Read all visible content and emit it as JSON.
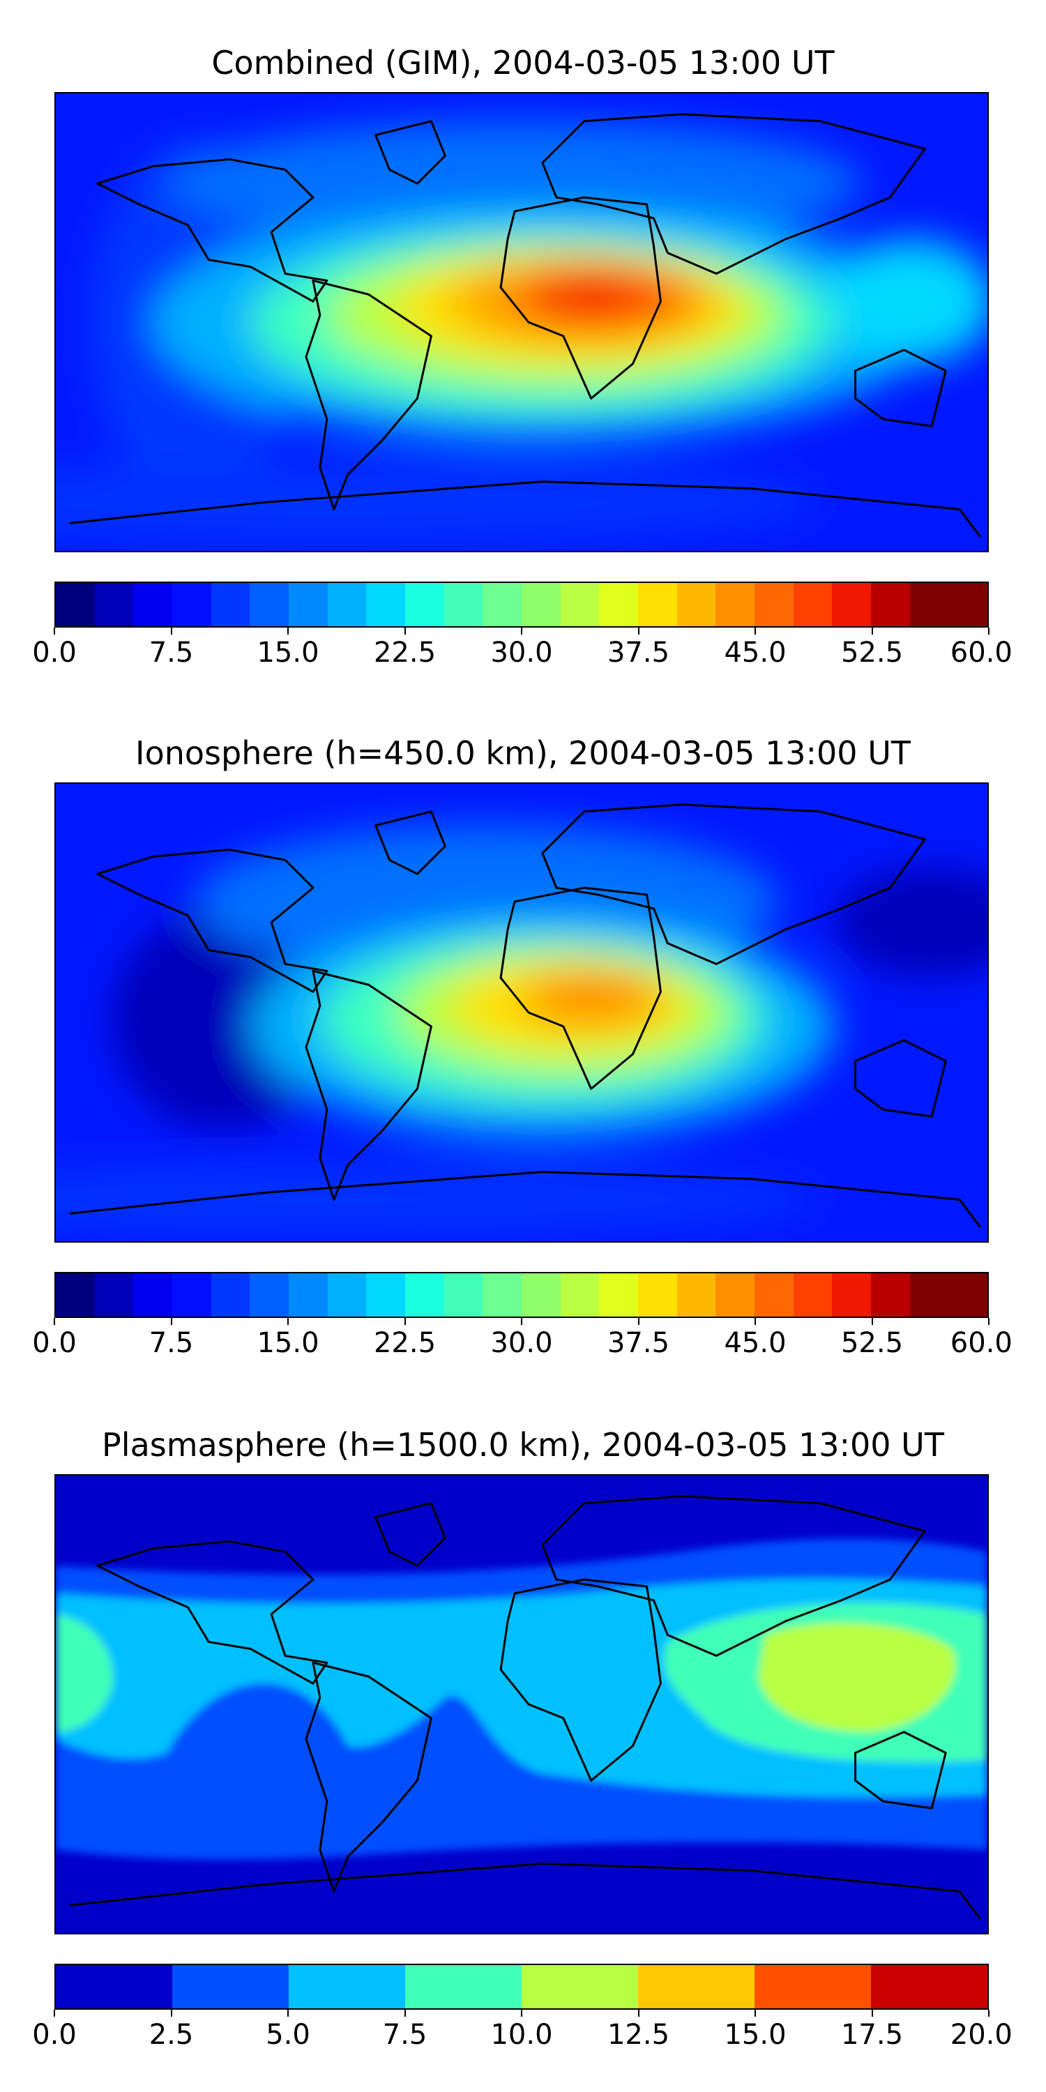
{
  "panels": [
    {
      "id": "combined",
      "title": "Combined (GIM), 2004-03-05 13:00 UT",
      "colorbar": {
        "min": 0,
        "max": 60,
        "step": 2.5,
        "tick_labels": [
          "0.0",
          "7.5",
          "15.0",
          "22.5",
          "30.0",
          "37.5",
          "45.0",
          "52.5",
          "60.0"
        ],
        "colors": [
          "#00007f",
          "#0000b8",
          "#0000f0",
          "#0010ff",
          "#0038ff",
          "#0060ff",
          "#0088ff",
          "#00b0ff",
          "#00d8ff",
          "#1affe0",
          "#42ffb8",
          "#6aff90",
          "#90ff6a",
          "#b8ff42",
          "#e0ff1a",
          "#ffe000",
          "#ffb800",
          "#ff9000",
          "#ff6800",
          "#ff4000",
          "#f01800",
          "#b80000",
          "#7f0000",
          "#7f0000"
        ]
      }
    },
    {
      "id": "ionosphere",
      "title": "Ionosphere  (h=450.0 km), 2004-03-05 13:00 UT",
      "colorbar": {
        "min": 0,
        "max": 60,
        "step": 2.5,
        "tick_labels": [
          "0.0",
          "7.5",
          "15.0",
          "22.5",
          "30.0",
          "37.5",
          "45.0",
          "52.5",
          "60.0"
        ],
        "colors": [
          "#00007f",
          "#0000b8",
          "#0000f0",
          "#0010ff",
          "#0038ff",
          "#0060ff",
          "#0088ff",
          "#00b0ff",
          "#00d8ff",
          "#1affe0",
          "#42ffb8",
          "#6aff90",
          "#90ff6a",
          "#b8ff42",
          "#e0ff1a",
          "#ffe000",
          "#ffb800",
          "#ff9000",
          "#ff6800",
          "#ff4000",
          "#f01800",
          "#b80000",
          "#7f0000",
          "#7f0000"
        ]
      }
    },
    {
      "id": "plasmasphere",
      "title": "Plasmasphere (h=1500.0 km), 2004-03-05 13:00 UT",
      "colorbar": {
        "min": 0,
        "max": 20,
        "step": 2.5,
        "tick_labels": [
          "0.0",
          "2.5",
          "5.0",
          "7.5",
          "10.0",
          "12.5",
          "15.0",
          "17.5",
          "20.0"
        ],
        "colors": [
          "#0000c8",
          "#0050ff",
          "#00c0ff",
          "#40ffb8",
          "#b8ff42",
          "#ffc800",
          "#ff5000",
          "#c80000"
        ]
      }
    }
  ]
}
